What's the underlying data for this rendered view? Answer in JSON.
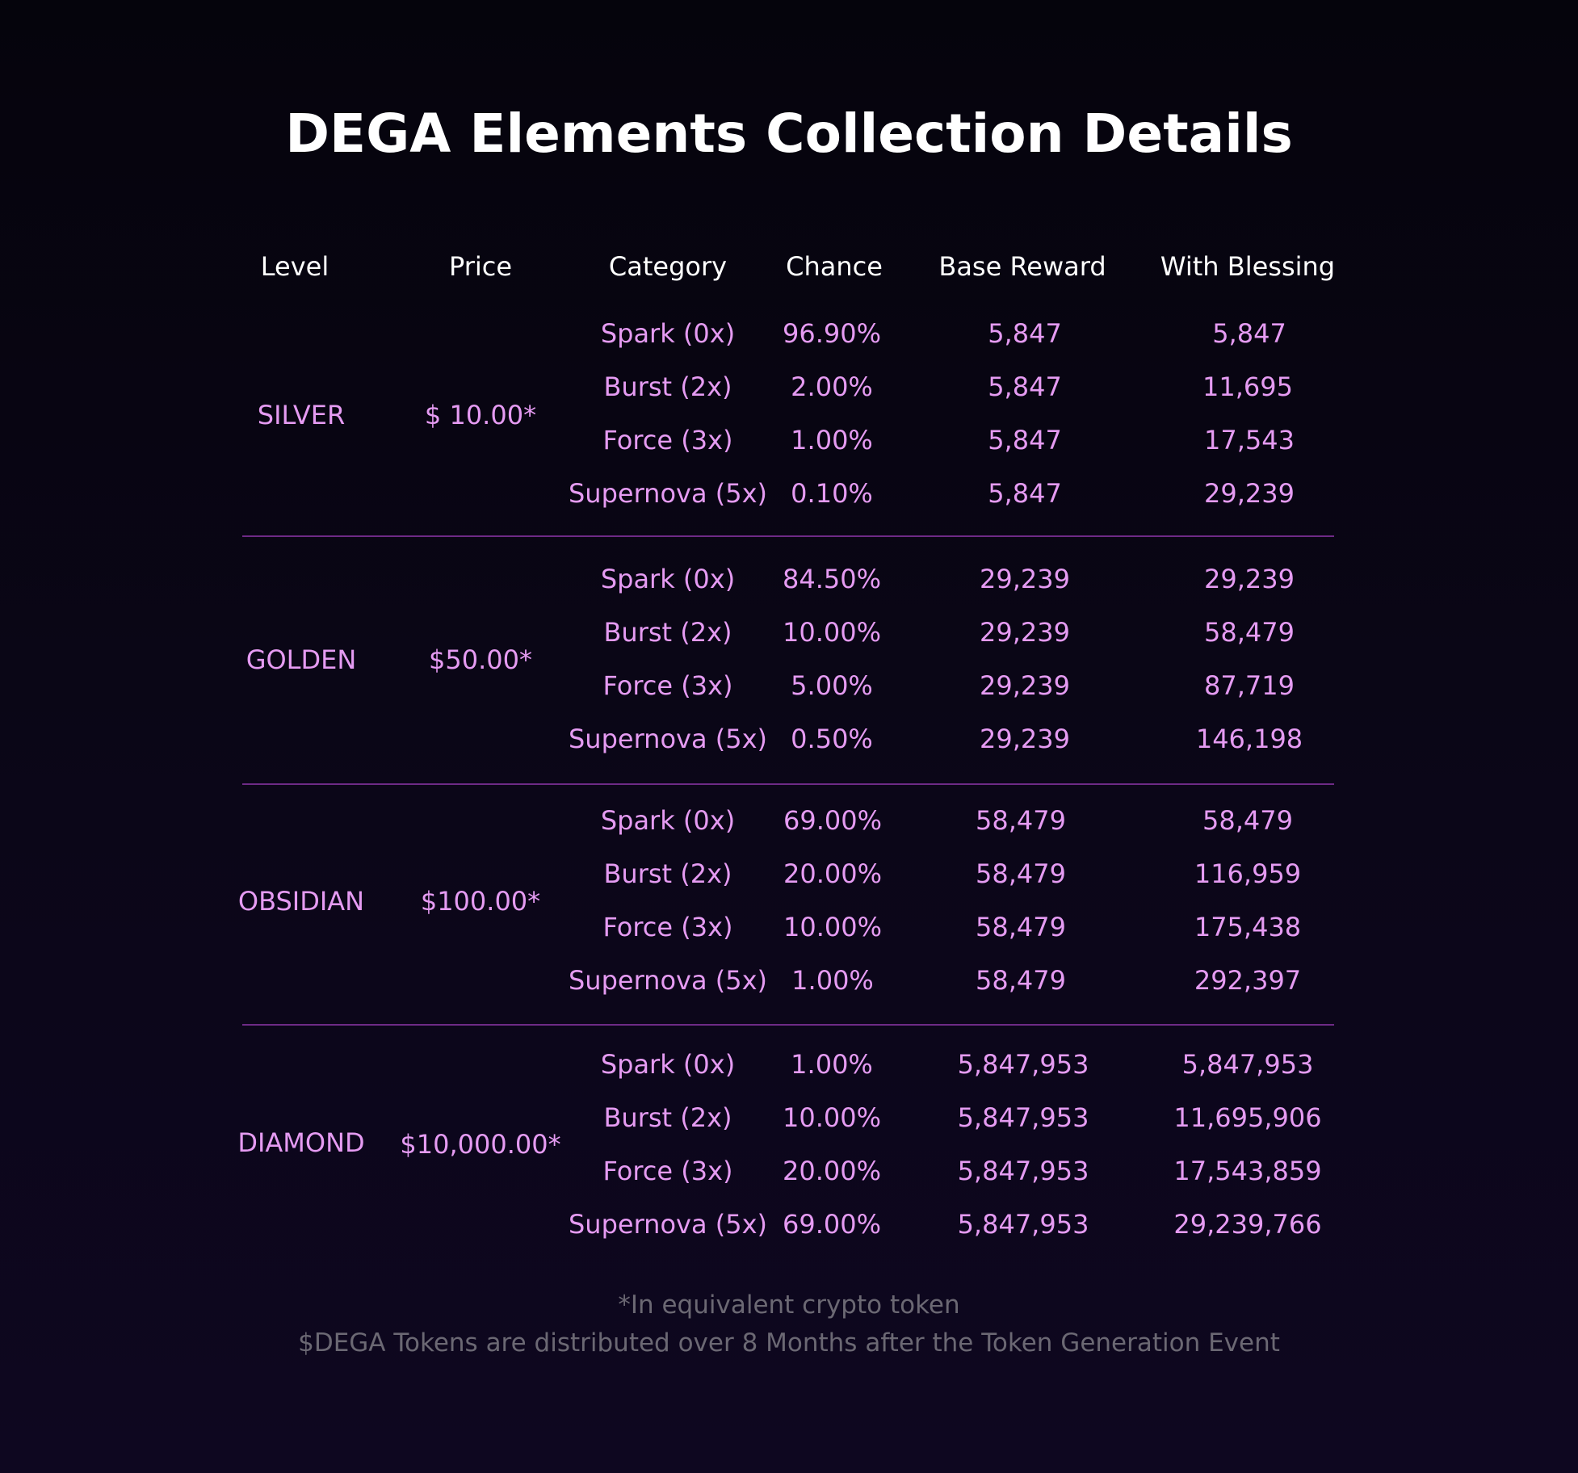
{
  "title": "DEGA Elements Collection Details",
  "headers": {
    "level": "Level",
    "price": "Price",
    "category": "Category",
    "chance": "Chance",
    "base_reward": "Base Reward",
    "with_blessing": "With Blessing"
  },
  "groups": [
    {
      "level": "SILVER",
      "price": "$ 10.00*",
      "rows": [
        {
          "category": "Spark (0x)",
          "chance": "96.90%",
          "base": "5,847",
          "blessing": "5,847"
        },
        {
          "category": "Burst (2x)",
          "chance": "2.00%",
          "base": "5,847",
          "blessing": "11,695"
        },
        {
          "category": "Force (3x)",
          "chance": "1.00%",
          "base": "5,847",
          "blessing": "17,543"
        },
        {
          "category": "Supernova (5x)",
          "chance": "0.10%",
          "base": "5,847",
          "blessing": "29,239"
        }
      ]
    },
    {
      "level": "GOLDEN",
      "price": "$50.00*",
      "rows": [
        {
          "category": "Spark (0x)",
          "chance": "84.50%",
          "base": "29,239",
          "blessing": "29,239"
        },
        {
          "category": "Burst (2x)",
          "chance": "10.00%",
          "base": "29,239",
          "blessing": "58,479"
        },
        {
          "category": "Force (3x)",
          "chance": "5.00%",
          "base": "29,239",
          "blessing": "87,719"
        },
        {
          "category": "Supernova (5x)",
          "chance": "0.50%",
          "base": "29,239",
          "blessing": "146,198"
        }
      ]
    },
    {
      "level": "OBSIDIAN",
      "price": "$100.00*",
      "rows": [
        {
          "category": "Spark (0x)",
          "chance": "69.00%",
          "base": "58,479",
          "blessing": "58,479"
        },
        {
          "category": "Burst (2x)",
          "chance": "20.00%",
          "base": "58,479",
          "blessing": "116,959"
        },
        {
          "category": "Force (3x)",
          "chance": "10.00%",
          "base": "58,479",
          "blessing": "175,438"
        },
        {
          "category": "Supernova (5x)",
          "chance": "1.00%",
          "base": "58,479",
          "blessing": "292,397"
        }
      ]
    },
    {
      "level": "DIAMOND",
      "price": "$10,000.00*",
      "rows": [
        {
          "category": "Spark (0x)",
          "chance": "1.00%",
          "base": "5,847,953",
          "blessing": "5,847,953"
        },
        {
          "category": "Burst (2x)",
          "chance": "10.00%",
          "base": "5,847,953",
          "blessing": "11,695,906"
        },
        {
          "category": "Force (3x)",
          "chance": "20.00%",
          "base": "5,847,953",
          "blessing": "17,543,859"
        },
        {
          "category": "Supernova (5x)",
          "chance": "69.00%",
          "base": "5,847,953",
          "blessing": "29,239,766"
        }
      ]
    }
  ],
  "footnotes": {
    "line1": "*In equivalent crypto token",
    "line2": "$DEGA Tokens are distributed over 8 Months after the Token Generation Event"
  },
  "colors": {
    "background": "#07050f",
    "title": "#ffffff",
    "header": "#ffffff",
    "cell": "#e59bf2",
    "divider": "#6e2a86",
    "footnote": "#6b6873"
  }
}
